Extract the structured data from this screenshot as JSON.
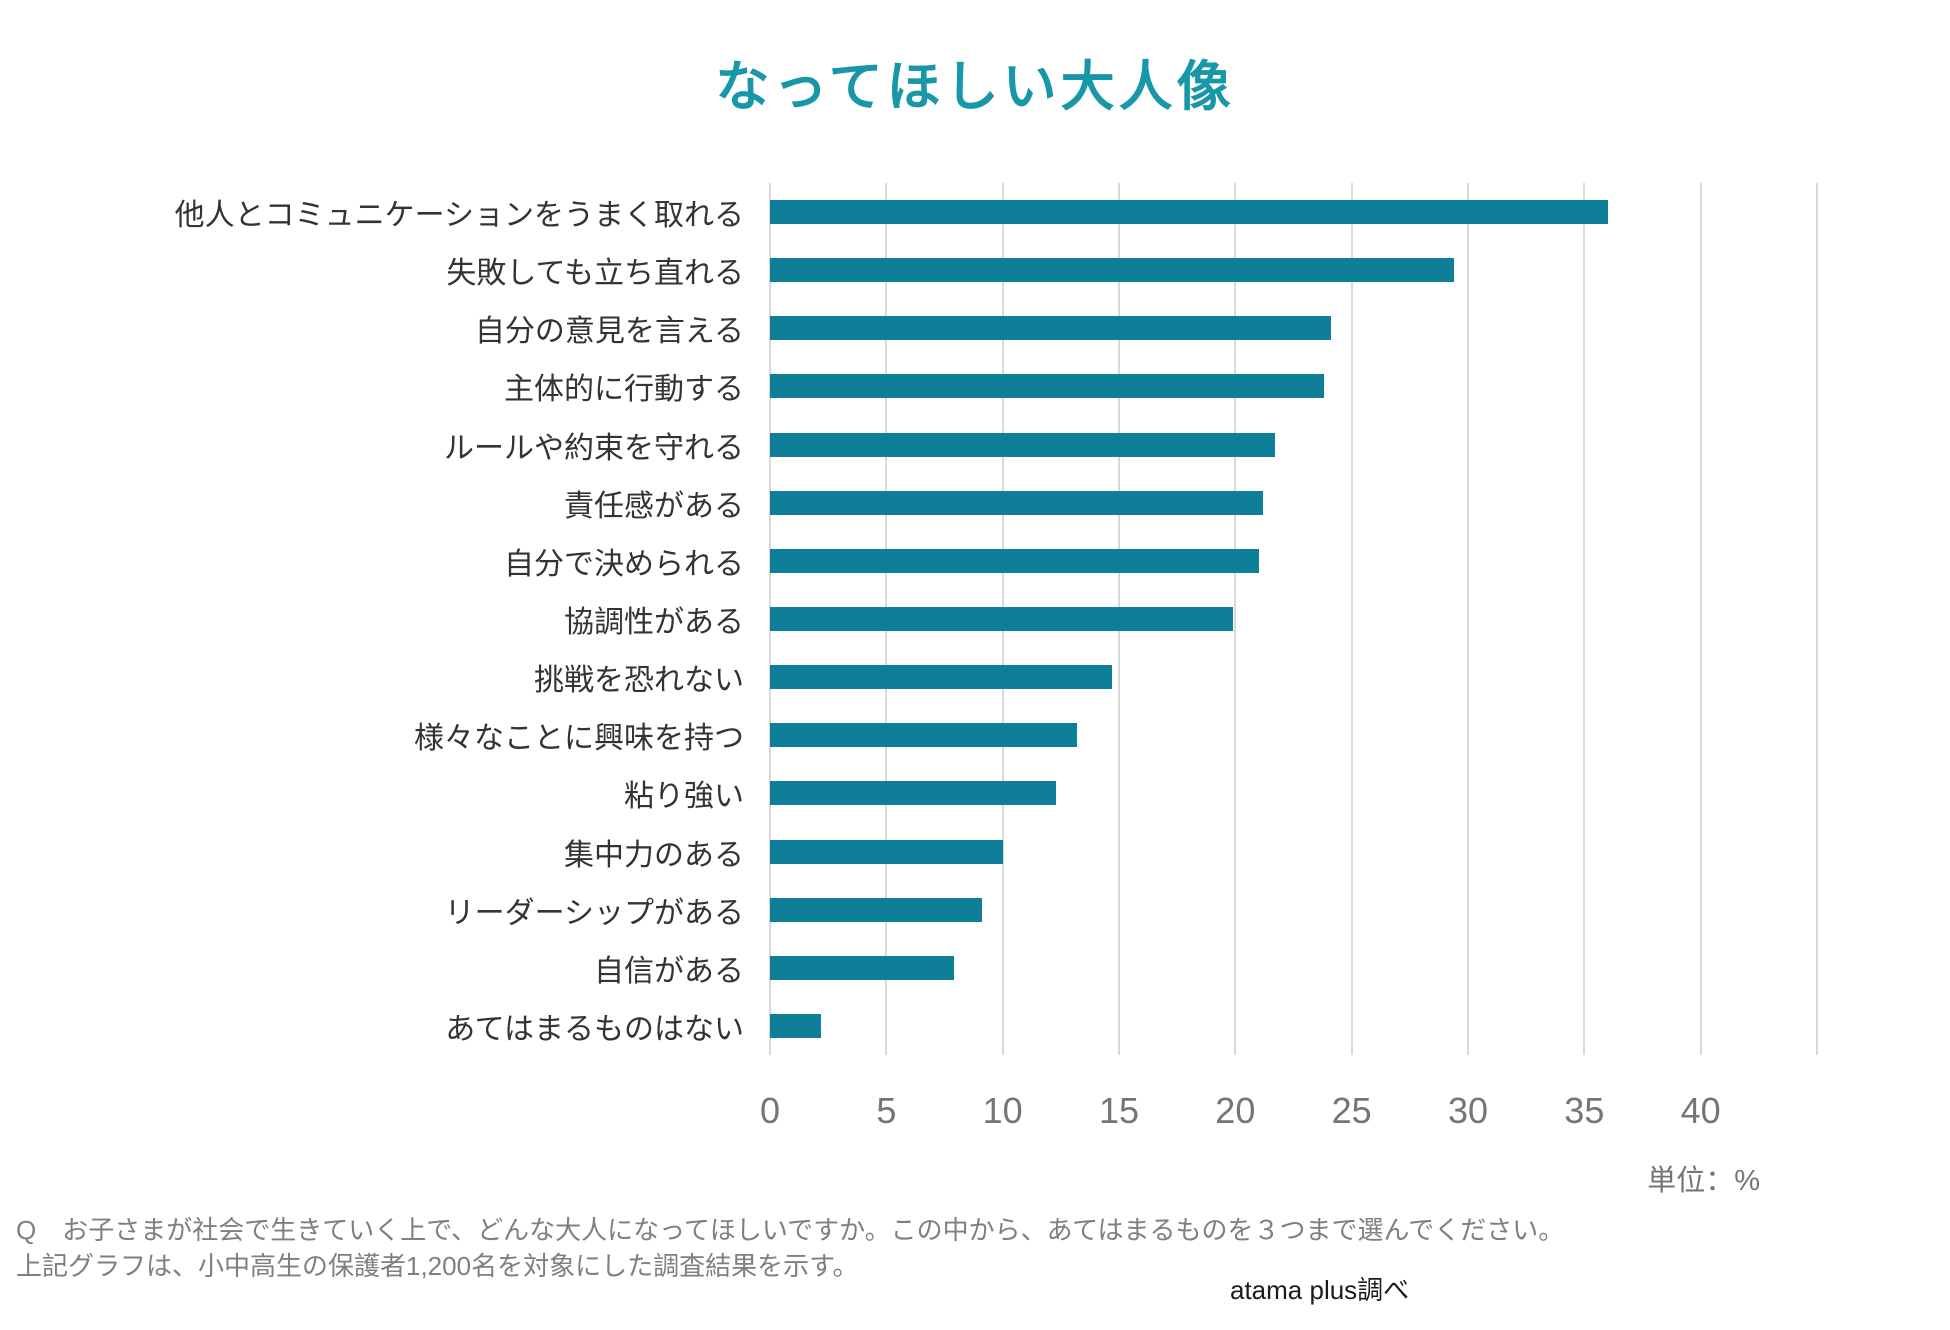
{
  "page": {
    "title": "なってほしい大人像",
    "unit_label": "単位：%",
    "source_label": "atama plus調べ",
    "footnote": {
      "line1": "Q　お子さまが社会で生きていく上で、どんな大人になってほしいですか。この中から、あてはまるものを３つまで選んでください。",
      "line2": "上記グラフは、小中高生の保護者1,200名を対象にした調査結果を示す。"
    },
    "colors": {
      "bar": "#0f7f99",
      "title": "#1897a9",
      "gridline": "#d9d9d9",
      "tick_label": "#757575",
      "category_label": "#333333",
      "footnote_text": "#7f7f7f",
      "source_text": "#1b1b1b"
    }
  },
  "chart_data": {
    "type": "bar",
    "orientation": "horizontal",
    "title": "なってほしい大人像",
    "unit": "%",
    "categories": [
      "他人とコミュニケーションをうまく取れる",
      "失敗しても立ち直れる",
      "自分の意見を言える",
      "主体的に行動する",
      "ルールや約束を守れる",
      "責任感がある",
      "自分で決められる",
      "協調性がある",
      "挑戦を恐れない",
      "様々なことに興味を持つ",
      "粘り強い",
      "集中力のある",
      "リーダーシップがある",
      "自信がある",
      "あてはまるものはない"
    ],
    "values": [
      36.0,
      29.4,
      24.1,
      23.8,
      21.7,
      21.2,
      21.0,
      19.9,
      14.7,
      13.2,
      12.3,
      10.0,
      9.1,
      7.9,
      2.2
    ],
    "xlabel": "単位：%",
    "ylabel": "",
    "xlim": [
      0,
      45
    ],
    "xticks": [
      0,
      5,
      10,
      15,
      20,
      25,
      30,
      35,
      40
    ],
    "grid": true,
    "legend": false
  }
}
